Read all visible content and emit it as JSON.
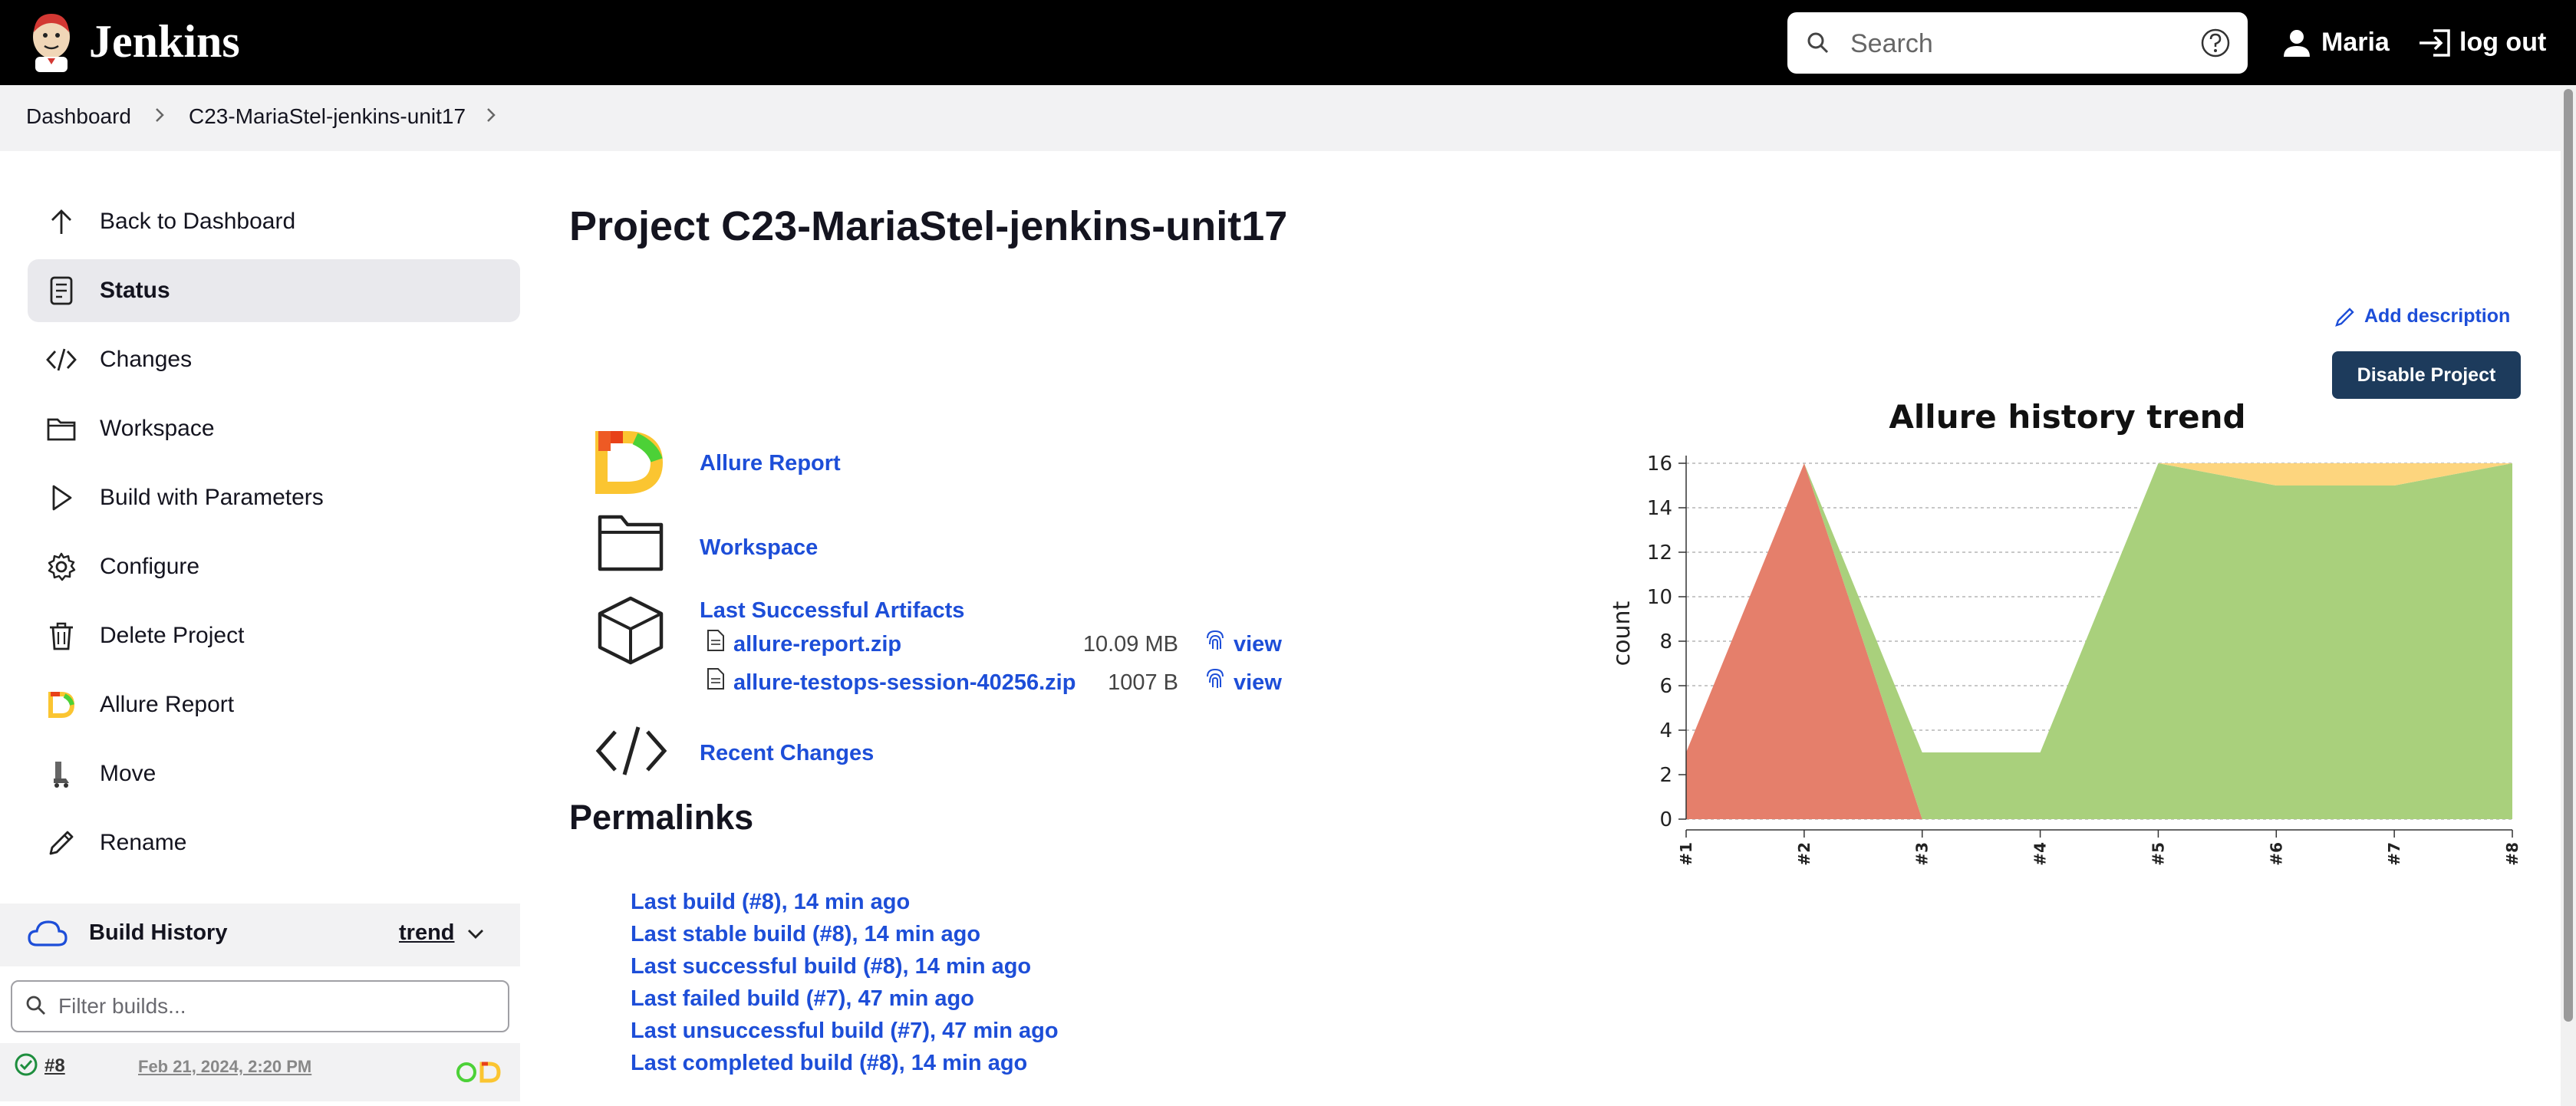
{
  "header": {
    "brand": "Jenkins",
    "search_placeholder": "Search",
    "user": "Maria",
    "logout": "log out"
  },
  "breadcrumb": [
    "Dashboard",
    "C23-MariaStel-jenkins-unit17"
  ],
  "sidebar": {
    "items": [
      {
        "label": "Back to Dashboard",
        "icon": "arrow-up-icon"
      },
      {
        "label": "Status",
        "icon": "document-icon"
      },
      {
        "label": "Changes",
        "icon": "code-icon"
      },
      {
        "label": "Workspace",
        "icon": "folder-icon"
      },
      {
        "label": "Build with Parameters",
        "icon": "play-icon"
      },
      {
        "label": "Configure",
        "icon": "gear-icon"
      },
      {
        "label": "Delete Project",
        "icon": "trash-icon"
      },
      {
        "label": "Allure Report",
        "icon": "allure-icon"
      },
      {
        "label": "Move",
        "icon": "move-icon"
      },
      {
        "label": "Rename",
        "icon": "pencil-icon"
      }
    ],
    "build_history": {
      "title": "Build History",
      "trend": "trend",
      "filter_placeholder": "Filter builds...",
      "builds": [
        {
          "number": "#8",
          "date": "Feb 21, 2024, 2:20 PM"
        }
      ]
    }
  },
  "main": {
    "title": "Project C23-MariaStel-jenkins-unit17",
    "add_description": "Add description",
    "disable_button": "Disable Project",
    "links": {
      "allure_report": "Allure Report",
      "workspace": "Workspace",
      "last_successful_artifacts": "Last Successful Artifacts",
      "recent_changes": "Recent Changes"
    },
    "artifacts": [
      {
        "name": "allure-report.zip",
        "size": "10.09 MB",
        "view": "view"
      },
      {
        "name": "allure-testops-session-40256.zip",
        "size": "1007 B",
        "view": "view"
      }
    ],
    "permalinks_title": "Permalinks",
    "permalinks": [
      "Last build (#8), 14 min ago",
      "Last stable build (#8), 14 min ago",
      "Last successful build (#8), 14 min ago",
      "Last failed build (#7), 47 min ago",
      "Last unsuccessful build (#7), 47 min ago",
      "Last completed build (#8), 14 min ago"
    ]
  },
  "chart_data": {
    "type": "area",
    "title": "Allure history trend",
    "ylabel": "count",
    "xlabel": "",
    "categories": [
      "#1",
      "#2",
      "#3",
      "#4",
      "#5",
      "#6",
      "#7",
      "#8"
    ],
    "ylim": [
      0,
      16
    ],
    "yticks": [
      0,
      2,
      4,
      6,
      8,
      10,
      12,
      14,
      16
    ],
    "grid": true,
    "stacked": true,
    "series": [
      {
        "values": [
          3,
          16,
          0,
          0,
          0,
          0,
          0,
          0
        ],
        "color": "#e57f6b"
      },
      {
        "values": [
          0,
          0,
          3,
          3,
          16,
          15,
          15,
          16
        ],
        "color": "#a9d07c"
      },
      {
        "values": [
          0,
          0,
          0,
          0,
          0,
          1,
          1,
          0
        ],
        "color": "#fdd57e"
      }
    ]
  },
  "colors": {
    "header_bg": "#000000",
    "link": "#1d4ed8",
    "button_bg": "#1d3b5c"
  }
}
